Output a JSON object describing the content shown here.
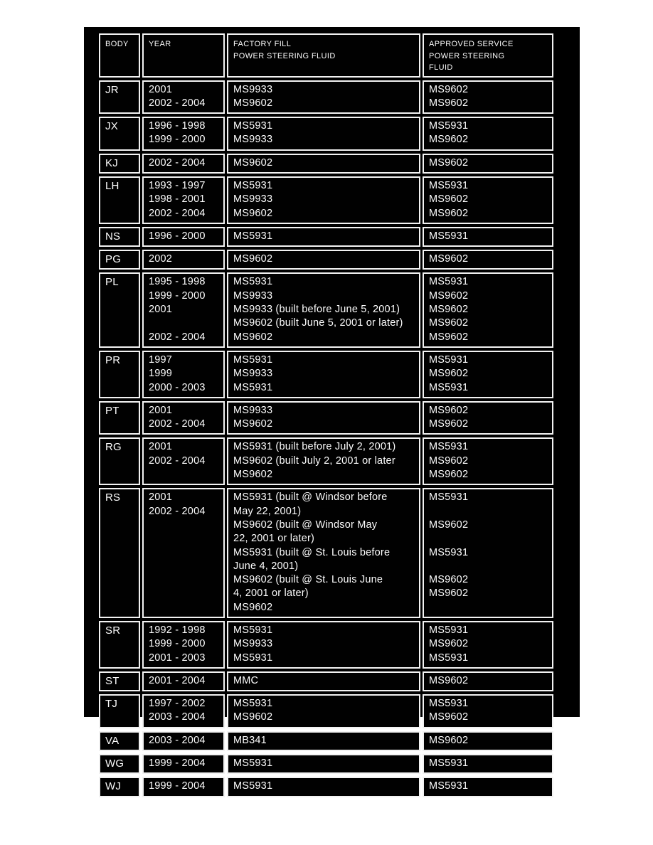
{
  "page": {
    "background": "#ffffff",
    "panel_background": "#000000",
    "border_color": "#f2f2f2",
    "text_color": "#fdfdfd"
  },
  "table": {
    "columns": [
      "body",
      "years",
      "factory_fill",
      "approved"
    ],
    "headers": {
      "body": [
        "BODY"
      ],
      "years": [
        "YEAR"
      ],
      "factory_fill": [
        "FACTORY FILL",
        "POWER STEERING FLUID"
      ],
      "approved": [
        "APPROVED SERVICE",
        "POWER STEERING",
        "FLUID"
      ]
    },
    "rows": [
      {
        "body": [
          "JR"
        ],
        "years": [
          "2001",
          "2002 - 2004"
        ],
        "factory_fill": [
          "MS9933",
          "MS9602"
        ],
        "approved": [
          "MS9602",
          "MS9602"
        ]
      },
      {
        "body": [
          "JX"
        ],
        "years": [
          "1996 - 1998",
          "1999 - 2000"
        ],
        "factory_fill": [
          "MS5931",
          "MS9933"
        ],
        "approved": [
          "MS5931",
          "MS9602"
        ]
      },
      {
        "body": [
          "KJ"
        ],
        "years": [
          "2002 - 2004"
        ],
        "factory_fill": [
          "MS9602"
        ],
        "approved": [
          "MS9602"
        ]
      },
      {
        "body": [
          "LH"
        ],
        "years": [
          "1993 - 1997",
          "1998 - 2001",
          "2002 - 2004"
        ],
        "factory_fill": [
          "MS5931",
          "MS9933",
          "MS9602"
        ],
        "approved": [
          "MS5931",
          "MS9602",
          "MS9602"
        ]
      },
      {
        "body": [
          "NS"
        ],
        "years": [
          "1996 - 2000"
        ],
        "factory_fill": [
          "MS5931"
        ],
        "approved": [
          "MS5931"
        ]
      },
      {
        "body": [
          "PG"
        ],
        "years": [
          "2002"
        ],
        "factory_fill": [
          "MS9602"
        ],
        "approved": [
          "MS9602"
        ]
      },
      {
        "body": [
          "PL"
        ],
        "years": [
          "1995 - 1998",
          "1999 - 2000",
          "2001",
          "",
          "2002 - 2004"
        ],
        "factory_fill": [
          "MS5931",
          "MS9933",
          "MS9933 (built before June 5, 2001)",
          "MS9602 (built June 5, 2001 or later)",
          "MS9602"
        ],
        "approved": [
          "MS5931",
          "MS9602",
          "MS9602",
          "MS9602",
          "MS9602"
        ]
      },
      {
        "body": [
          "PR"
        ],
        "years": [
          "1997",
          "1999",
          "2000 - 2003"
        ],
        "factory_fill": [
          "MS5931",
          "MS9933",
          "MS5931"
        ],
        "approved": [
          "MS5931",
          "MS9602",
          "MS5931"
        ]
      },
      {
        "body": [
          "PT"
        ],
        "years": [
          "2001",
          "2002 - 2004"
        ],
        "factory_fill": [
          "MS9933",
          "MS9602"
        ],
        "approved": [
          "MS9602",
          "MS9602"
        ]
      },
      {
        "body": [
          "RG"
        ],
        "years": [
          "2001",
          "2002 - 2004"
        ],
        "factory_fill": [
          "MS5931 (built before July 2, 2001)",
          "MS9602 (built July 2, 2001 or later",
          "MS9602"
        ],
        "approved": [
          "MS5931",
          "MS9602",
          "MS9602"
        ]
      },
      {
        "body": [
          "RS"
        ],
        "years": [
          "2001",
          "2002 - 2004"
        ],
        "factory_fill": [
          "MS5931 (built @ Windsor before",
          "May 22, 2001)",
          "MS9602 (built @ Windsor May",
          "22, 2001 or later)",
          "MS5931 (built @ St. Louis before",
          "June 4, 2001)",
          "MS9602 (built @ St. Louis June",
          "4, 2001 or later)",
          "MS9602"
        ],
        "approved": [
          "MS5931",
          "",
          "MS9602",
          "",
          "MS5931",
          "",
          "MS9602",
          "MS9602"
        ]
      },
      {
        "body": [
          "SR"
        ],
        "years": [
          "1992 - 1998",
          "1999 - 2000",
          "2001 - 2003"
        ],
        "factory_fill": [
          "MS5931",
          "MS9933",
          "MS5931"
        ],
        "approved": [
          "MS5931",
          "MS9602",
          "MS5931"
        ]
      },
      {
        "body": [
          "ST"
        ],
        "years": [
          "2001 - 2004"
        ],
        "factory_fill": [
          "MMC"
        ],
        "approved": [
          "MS9602"
        ]
      },
      {
        "body": [
          "TJ"
        ],
        "years": [
          "1997 - 2002",
          "2003 - 2004"
        ],
        "factory_fill": [
          "MS5931",
          "MS9602"
        ],
        "approved": [
          "MS5931",
          "MS9602"
        ]
      },
      {
        "body": [
          "VA"
        ],
        "years": [
          "2003 - 2004"
        ],
        "factory_fill": [
          "MB341"
        ],
        "approved": [
          "MS9602"
        ]
      },
      {
        "body": [
          "WG"
        ],
        "years": [
          "1999 - 2004"
        ],
        "factory_fill": [
          "MS5931"
        ],
        "approved": [
          "MS5931"
        ]
      },
      {
        "body": [
          "WJ"
        ],
        "years": [
          "1999 - 2004"
        ],
        "factory_fill": [
          "MS5931"
        ],
        "approved": [
          "MS5931"
        ]
      }
    ]
  }
}
